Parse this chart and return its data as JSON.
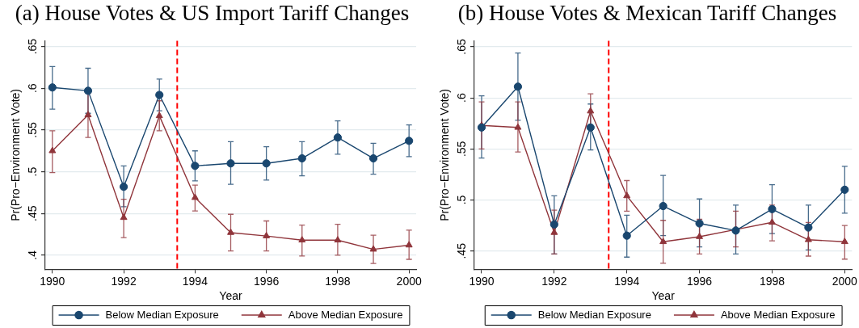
{
  "chart_data": [
    {
      "type": "line",
      "title": "(a) House Votes & US Import Tariff Changes",
      "xlabel": "Year",
      "ylabel": "Pr(Pro−Environment Vote)",
      "x": [
        1990,
        1991,
        1992,
        1993,
        1994,
        1995,
        1996,
        1997,
        1998,
        1999,
        2000
      ],
      "series": [
        {
          "name": "Below Median Exposure",
          "color": "#1a476f",
          "marker": "circle",
          "values": [
            0.601,
            0.597,
            0.482,
            0.592,
            0.507,
            0.51,
            0.51,
            0.516,
            0.541,
            0.516,
            0.537
          ],
          "errors": [
            [
              0.575,
              0.626
            ],
            [
              0.57,
              0.624
            ],
            [
              0.458,
              0.507
            ],
            [
              0.573,
              0.611
            ],
            [
              0.489,
              0.525
            ],
            [
              0.485,
              0.536
            ],
            [
              0.49,
              0.53
            ],
            [
              0.495,
              0.536
            ],
            [
              0.521,
              0.561
            ],
            [
              0.497,
              0.534
            ],
            [
              0.518,
              0.556
            ]
          ]
        },
        {
          "name": "Above Median Exposure",
          "color": "#90353b",
          "marker": "triangle",
          "values": [
            0.525,
            0.568,
            0.445,
            0.567,
            0.469,
            0.427,
            0.423,
            0.418,
            0.418,
            0.407,
            0.412
          ],
          "errors": [
            [
              0.499,
              0.549
            ],
            [
              0.541,
              0.594
            ],
            [
              0.421,
              0.467
            ],
            [
              0.549,
              0.585
            ],
            [
              0.453,
              0.484
            ],
            [
              0.405,
              0.449
            ],
            [
              0.405,
              0.441
            ],
            [
              0.399,
              0.436
            ],
            [
              0.4,
              0.437
            ],
            [
              0.39,
              0.424
            ],
            [
              0.395,
              0.43
            ]
          ]
        }
      ],
      "xlim": [
        1989.8,
        2000.2
      ],
      "xticks": [
        1990,
        1992,
        1994,
        1996,
        1998,
        2000
      ],
      "ylim": [
        0.383,
        0.657
      ],
      "yticks": [
        {
          "value": 0.4,
          "label": ".4"
        },
        {
          "value": 0.45,
          "label": ".45"
        },
        {
          "value": 0.5,
          "label": ".5"
        },
        {
          "value": 0.55,
          "label": ".55"
        },
        {
          "value": 0.6,
          "label": ".6"
        },
        {
          "value": 0.65,
          "label": ".65"
        }
      ],
      "ref_lines": [
        {
          "axis": "x",
          "value": 1993.5,
          "color": "#ff0000",
          "line_style": "dashed"
        }
      ],
      "grid": "y",
      "legend": "bottom"
    },
    {
      "type": "line",
      "title": "(b) House Votes & Mexican Tariff Changes",
      "xlabel": "Year",
      "ylabel": "Pr(Pro−Environment Vote)",
      "x": [
        1990,
        1991,
        1992,
        1993,
        1994,
        1995,
        1996,
        1997,
        1998,
        1999,
        2000
      ],
      "series": [
        {
          "name": "Below Median Exposure",
          "color": "#1a476f",
          "marker": "circle",
          "values": [
            0.571,
            0.611,
            0.476,
            0.571,
            0.465,
            0.494,
            0.477,
            0.47,
            0.491,
            0.473,
            0.51
          ],
          "errors": [
            [
              0.541,
              0.602
            ],
            [
              0.578,
              0.644
            ],
            [
              0.447,
              0.504
            ],
            [
              0.549,
              0.594
            ],
            [
              0.444,
              0.485
            ],
            [
              0.465,
              0.524
            ],
            [
              0.454,
              0.501
            ],
            [
              0.447,
              0.495
            ],
            [
              0.467,
              0.515
            ],
            [
              0.451,
              0.495
            ],
            [
              0.487,
              0.533
            ]
          ]
        },
        {
          "name": "Above Median Exposure",
          "color": "#90353b",
          "marker": "triangle",
          "values": [
            0.573,
            0.571,
            0.468,
            0.587,
            0.504,
            0.459,
            0.464,
            0.471,
            0.478,
            0.461,
            0.459
          ],
          "errors": [
            [
              0.55,
              0.596
            ],
            [
              0.547,
              0.596
            ],
            [
              0.447,
              0.49
            ],
            [
              0.571,
              0.604
            ],
            [
              0.489,
              0.519
            ],
            [
              0.438,
              0.48
            ],
            [
              0.447,
              0.481
            ],
            [
              0.454,
              0.489
            ],
            [
              0.46,
              0.495
            ],
            [
              0.445,
              0.478
            ],
            [
              0.442,
              0.475
            ]
          ]
        }
      ],
      "xlim": [
        1989.8,
        2000.2
      ],
      "xticks": [
        1990,
        1992,
        1994,
        1996,
        1998,
        2000
      ],
      "ylim": [
        0.432,
        0.656
      ],
      "yticks": [
        {
          "value": 0.45,
          "label": ".45"
        },
        {
          "value": 0.5,
          "label": ".5"
        },
        {
          "value": 0.55,
          "label": ".55"
        },
        {
          "value": 0.6,
          "label": ".6"
        },
        {
          "value": 0.65,
          "label": ".65"
        }
      ],
      "ref_lines": [
        {
          "axis": "x",
          "value": 1993.5,
          "color": "#ff0000",
          "line_style": "dashed"
        }
      ],
      "grid": "y",
      "legend": "bottom"
    }
  ]
}
